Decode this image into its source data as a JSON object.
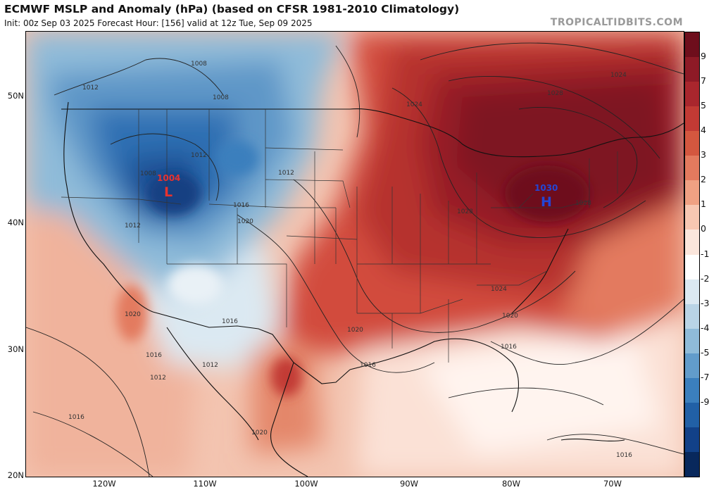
{
  "header": {
    "title": "ECMWF MSLP and Anomaly (hPa) (based on CFSR 1981-2010 Climatology)",
    "subtitle": "Init: 00z Sep 03 2025   Forecast Hour: [156]   valid at 12z Tue, Sep 09 2025",
    "credit": "TROPICALTIDBITS.COM"
  },
  "axes": {
    "lat_labels": [
      "50N",
      "40N",
      "30N",
      "20N"
    ],
    "lon_labels": [
      "120W",
      "110W",
      "100W",
      "90W",
      "80W",
      "70W"
    ]
  },
  "colorbar": {
    "ticks": [
      "9",
      "7",
      "5",
      "4",
      "3",
      "2",
      "1",
      "0",
      "-1",
      "-2",
      "-3",
      "-4",
      "-5",
      "-7",
      "-9"
    ],
    "colors": [
      "#6e0e1c",
      "#8e1a26",
      "#a9262d",
      "#c23a34",
      "#d4573f",
      "#e37a5e",
      "#efa183",
      "#f7c7b2",
      "#fbe6dc",
      "#ffffff",
      "#dbe9f2",
      "#b9d4e6",
      "#8fbbd9",
      "#629ccb",
      "#3b7fbd",
      "#2160a6",
      "#124188",
      "#08285c"
    ]
  },
  "pressure_centers": {
    "low": {
      "letter": "L",
      "value": "1004",
      "color": "#e8322e"
    },
    "high": {
      "letter": "H",
      "value": "1030",
      "color": "#2346d6"
    }
  },
  "contour_labels": [
    "1008",
    "1008",
    "1012",
    "1012",
    "1012",
    "1012",
    "1008",
    "1016",
    "1020",
    "1016",
    "1012",
    "1012",
    "1016",
    "1020",
    "1024",
    "1028",
    "1024",
    "1028",
    "1028",
    "1024",
    "1020",
    "1020",
    "1016",
    "1016",
    "1016",
    "1020",
    "1016"
  ]
}
